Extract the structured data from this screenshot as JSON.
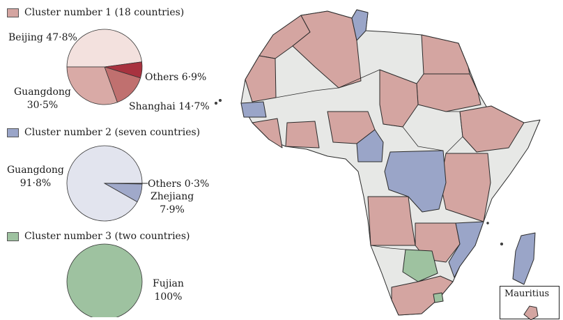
{
  "colors": {
    "cluster1": "#d4a5a1",
    "cluster2": "#9aa5c8",
    "cluster3": "#9ec2a0",
    "other": "#e7e8e6",
    "border": "#2a2a2a"
  },
  "legend": {
    "cluster1": "Cluster number 1 (18 countries)",
    "cluster2": "Cluster number 2 (seven countries)",
    "cluster3": "Cluster number 3 (two countries)"
  },
  "charts": {
    "pie1": {
      "slices": [
        {
          "name": "Beijing",
          "line1": "Beijing 47·8%",
          "line2": "",
          "value": 47.8,
          "color": "#f3e1de"
        },
        {
          "name": "Others",
          "line1": "Others 6·9%",
          "line2": "",
          "value": 6.9,
          "color": "#a8323f"
        },
        {
          "name": "Shanghai",
          "line1": "Shanghai 14·7%",
          "line2": "",
          "value": 14.7,
          "color": "#c0706f"
        },
        {
          "name": "Guangdong",
          "line1": "Guangdong",
          "line2": "30·5%",
          "value": 30.5,
          "color": "#d9aaa6"
        }
      ]
    },
    "pie2": {
      "slices": [
        {
          "name": "Others",
          "line1": "Others 0·3%",
          "line2": "",
          "value": 0.3,
          "color": "#3a3f5c"
        },
        {
          "name": "Zhejiang",
          "line1": "Zhejiang",
          "line2": "7·9%",
          "value": 7.9,
          "color": "#a0a9ca"
        },
        {
          "name": "Guangdong",
          "line1": "Guangdong",
          "line2": "91·8%",
          "value": 91.8,
          "color": "#e2e4ee"
        }
      ]
    },
    "pie3": {
      "slices": [
        {
          "name": "Fujian",
          "line1": "Fujian",
          "line2": "100%",
          "value": 100,
          "color": "#9ec2a0"
        }
      ]
    }
  },
  "inset": {
    "label": "Mauritius"
  }
}
